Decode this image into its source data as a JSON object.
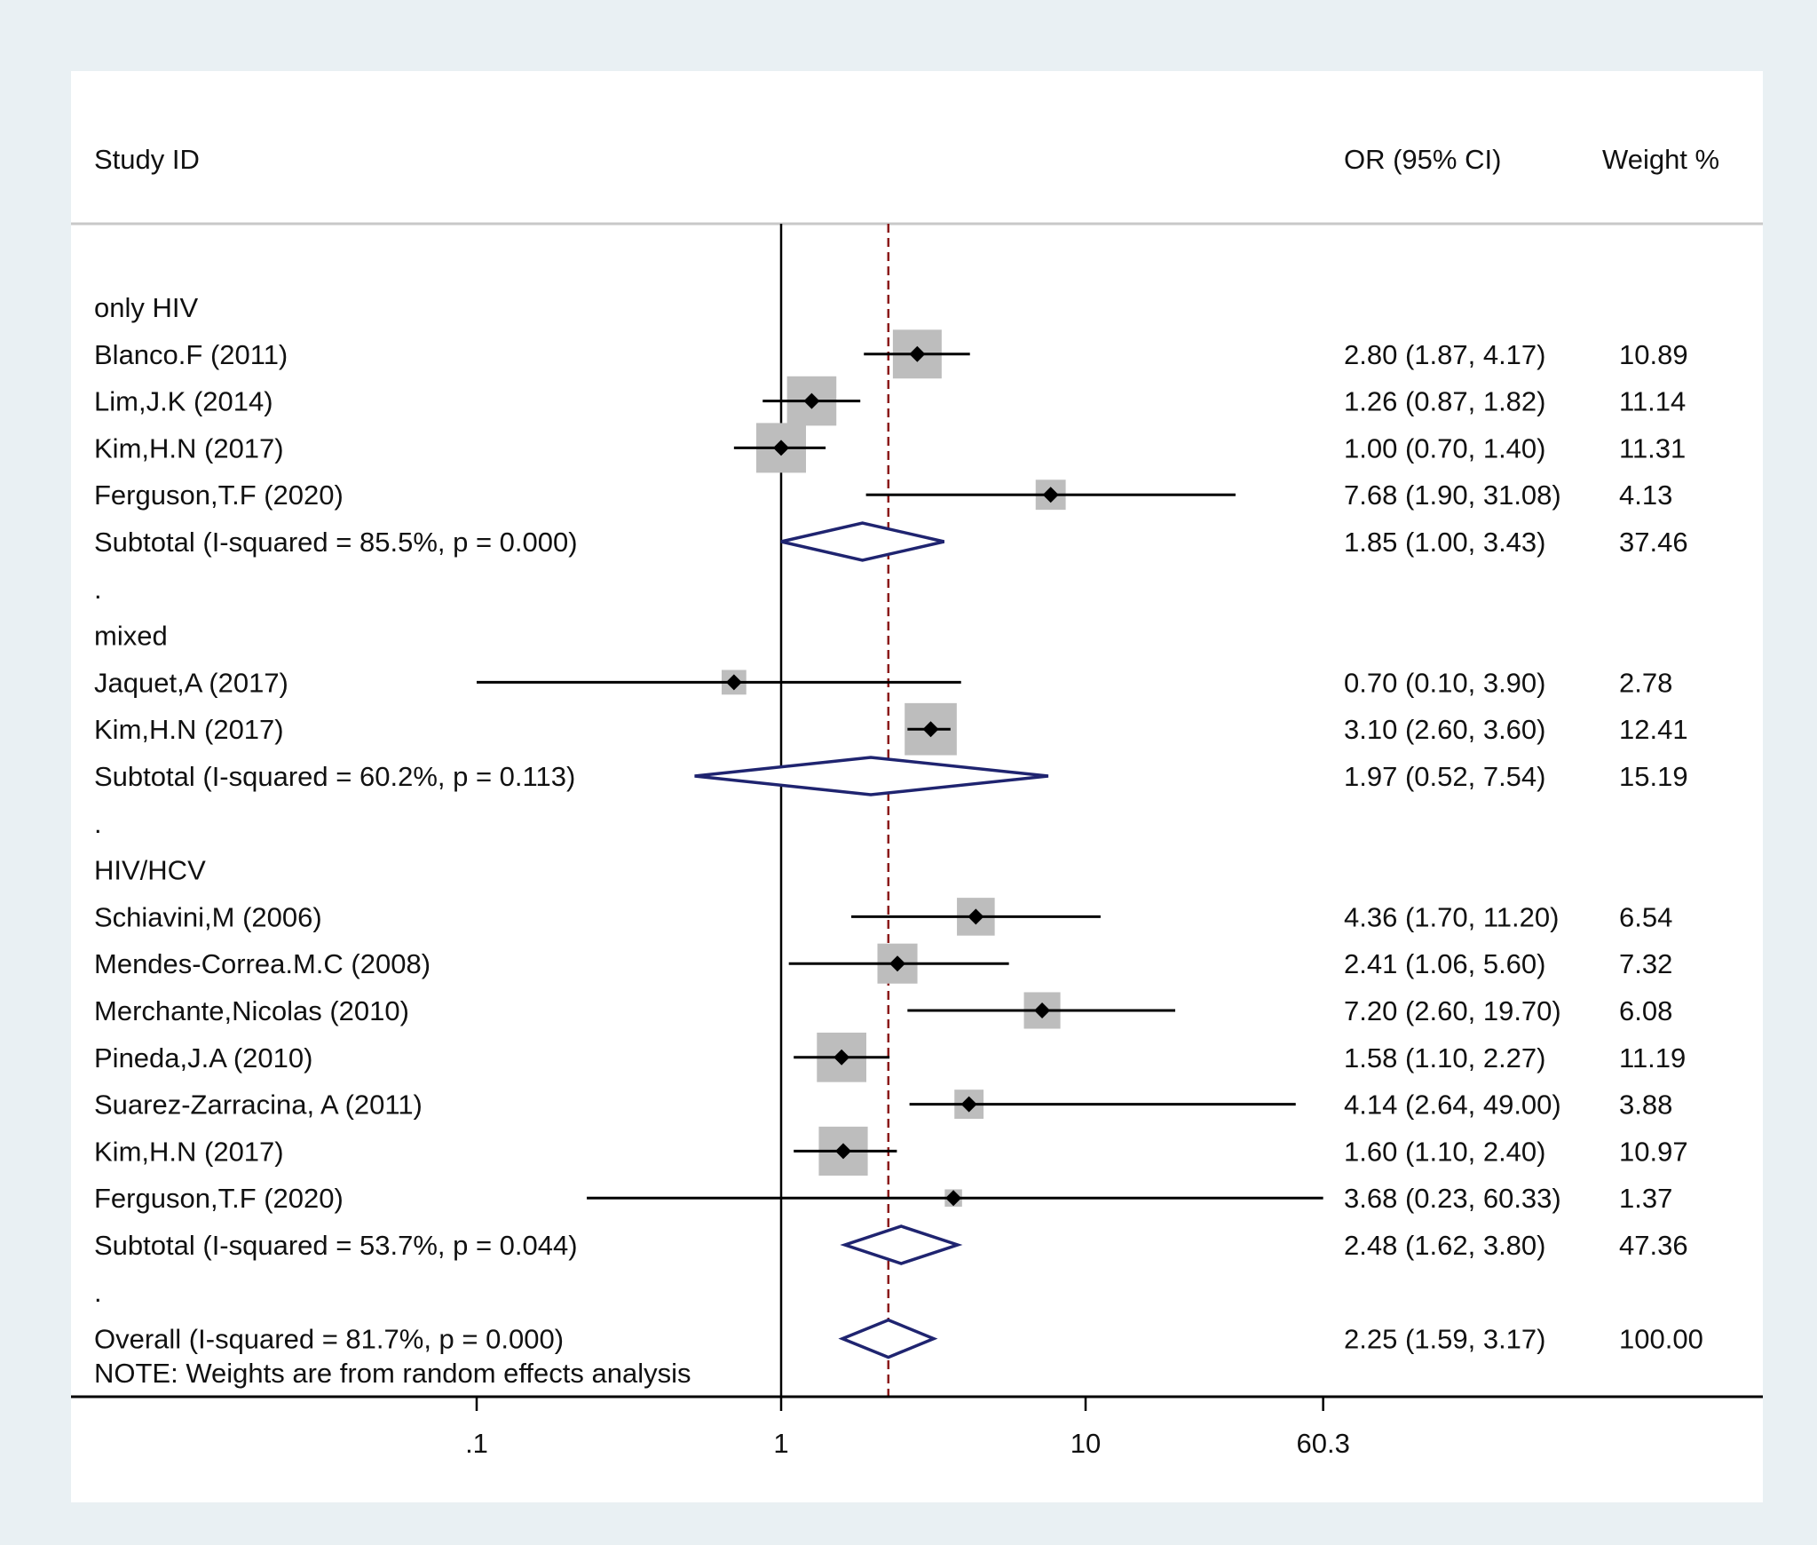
{
  "chart_data": {
    "type": "forest",
    "headers": {
      "study": "Study ID",
      "estimate": "OR (95% CI)",
      "weight": "Weight %"
    },
    "x_scale": "log",
    "x_ticks": [
      0.1,
      1,
      10,
      60.3
    ],
    "x_tick_labels": [
      ".1",
      "1",
      "10",
      "60.3"
    ],
    "null_line": 1,
    "overall_reference": 2.25,
    "rows": [
      {
        "kind": "group",
        "label": "only HIV"
      },
      {
        "kind": "study",
        "label": "Blanco.F (2011)",
        "or": 2.8,
        "lo": 1.87,
        "hi": 4.17,
        "weight": 10.89,
        "ci_text": "2.80 (1.87, 4.17)",
        "weight_text": "10.89"
      },
      {
        "kind": "study",
        "label": "Lim,J.K (2014)",
        "or": 1.26,
        "lo": 0.87,
        "hi": 1.82,
        "weight": 11.14,
        "ci_text": "1.26 (0.87, 1.82)",
        "weight_text": "11.14"
      },
      {
        "kind": "study",
        "label": "Kim,H.N (2017)",
        "or": 1.0,
        "lo": 0.7,
        "hi": 1.4,
        "weight": 11.31,
        "ci_text": "1.00 (0.70, 1.40)",
        "weight_text": "11.31"
      },
      {
        "kind": "study",
        "label": "Ferguson,T.F (2020)",
        "or": 7.68,
        "lo": 1.9,
        "hi": 31.08,
        "weight": 4.13,
        "ci_text": "7.68 (1.90, 31.08)",
        "weight_text": "4.13"
      },
      {
        "kind": "subtotal",
        "label": "Subtotal  (I-squared = 85.5%, p = 0.000)",
        "or": 1.85,
        "lo": 1.0,
        "hi": 3.43,
        "weight": 37.46,
        "ci_text": "1.85 (1.00, 3.43)",
        "weight_text": "37.46"
      },
      {
        "kind": "spacer",
        "label": "."
      },
      {
        "kind": "group",
        "label": "mixed"
      },
      {
        "kind": "study",
        "label": "Jaquet,A (2017)",
        "or": 0.7,
        "lo": 0.1,
        "hi": 3.9,
        "weight": 2.78,
        "ci_text": "0.70 (0.10, 3.90)",
        "weight_text": "2.78"
      },
      {
        "kind": "study",
        "label": "Kim,H.N (2017)",
        "or": 3.1,
        "lo": 2.6,
        "hi": 3.6,
        "weight": 12.41,
        "ci_text": "3.10 (2.60, 3.60)",
        "weight_text": "12.41"
      },
      {
        "kind": "subtotal",
        "label": "Subtotal  (I-squared = 60.2%, p = 0.113)",
        "or": 1.97,
        "lo": 0.52,
        "hi": 7.54,
        "weight": 15.19,
        "ci_text": "1.97 (0.52, 7.54)",
        "weight_text": "15.19"
      },
      {
        "kind": "spacer",
        "label": "."
      },
      {
        "kind": "group",
        "label": "HIV/HCV"
      },
      {
        "kind": "study",
        "label": "Schiavini,M (2006)",
        "or": 4.36,
        "lo": 1.7,
        "hi": 11.2,
        "weight": 6.54,
        "ci_text": "4.36 (1.70, 11.20)",
        "weight_text": "6.54"
      },
      {
        "kind": "study",
        "label": "Mendes-Correa.M.C (2008)",
        "or": 2.41,
        "lo": 1.06,
        "hi": 5.6,
        "weight": 7.32,
        "ci_text": "2.41 (1.06, 5.60)",
        "weight_text": "7.32"
      },
      {
        "kind": "study",
        "label": "Merchante,Nicolas (2010)",
        "or": 7.2,
        "lo": 2.6,
        "hi": 19.7,
        "weight": 6.08,
        "ci_text": "7.20 (2.60, 19.70)",
        "weight_text": "6.08"
      },
      {
        "kind": "study",
        "label": "Pineda,J.A (2010)",
        "or": 1.58,
        "lo": 1.1,
        "hi": 2.27,
        "weight": 11.19,
        "ci_text": "1.58 (1.10, 2.27)",
        "weight_text": "11.19"
      },
      {
        "kind": "study",
        "label": "Suarez-Zarracina, A (2011)",
        "or": 4.14,
        "lo": 2.64,
        "hi": 49.0,
        "weight": 3.88,
        "ci_text": "4.14 (2.64, 49.00)",
        "weight_text": "3.88"
      },
      {
        "kind": "study",
        "label": "Kim,H.N (2017)",
        "or": 1.6,
        "lo": 1.1,
        "hi": 2.4,
        "weight": 10.97,
        "ci_text": "1.60 (1.10, 2.40)",
        "weight_text": "10.97"
      },
      {
        "kind": "study",
        "label": "Ferguson,T.F (2020)",
        "or": 3.68,
        "lo": 0.23,
        "hi": 60.33,
        "weight": 1.37,
        "ci_text": "3.68 (0.23, 60.33)",
        "weight_text": "1.37"
      },
      {
        "kind": "subtotal",
        "label": "Subtotal  (I-squared = 53.7%, p = 0.044)",
        "or": 2.48,
        "lo": 1.62,
        "hi": 3.8,
        "weight": 47.36,
        "ci_text": "2.48 (1.62, 3.80)",
        "weight_text": "47.36"
      },
      {
        "kind": "spacer",
        "label": "."
      },
      {
        "kind": "overall",
        "label": "Overall  (I-squared = 81.7%, p = 0.000)",
        "or": 2.25,
        "lo": 1.59,
        "hi": 3.17,
        "weight": 100.0,
        "ci_text": "2.25 (1.59, 3.17)",
        "weight_text": "100.00"
      }
    ],
    "note": "NOTE: Weights are from random effects analysis",
    "colors": {
      "background": "#e9f0f3",
      "panel": "#ffffff",
      "box": "#bdbdbd",
      "point": "#000000",
      "ci_line": "#000000",
      "diamond": "#1f2470",
      "reference_line": "#8b1a1a",
      "separator": "#c8c8c8"
    }
  }
}
